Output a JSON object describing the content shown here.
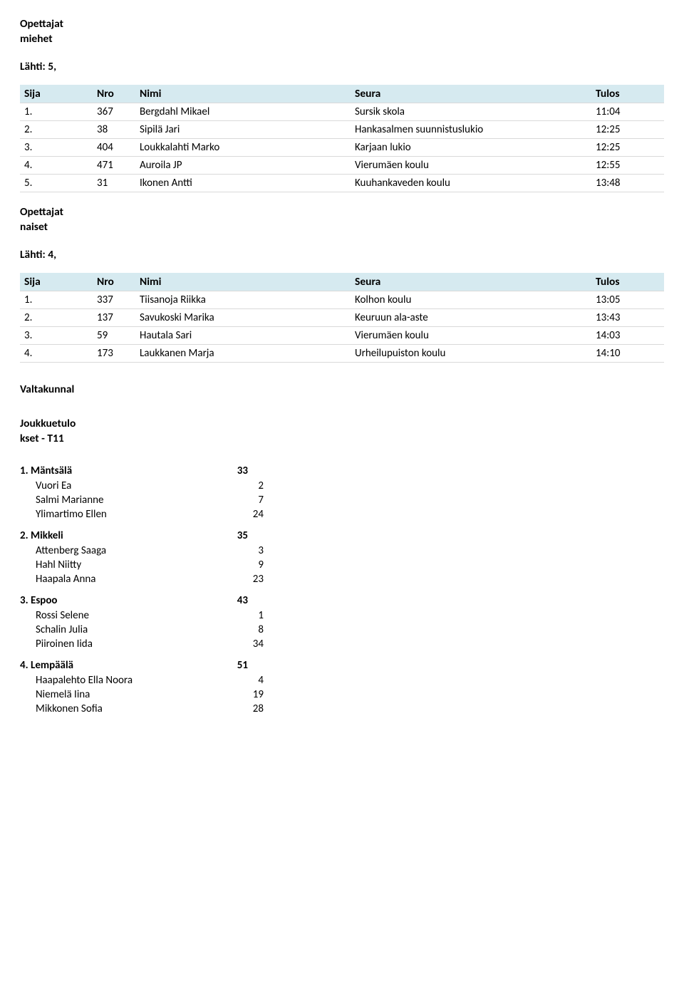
{
  "columns": {
    "sija": "Sija",
    "nro": "Nro",
    "nimi": "Nimi",
    "seura": "Seura",
    "tulos": "Tulos"
  },
  "section_header_bg": "#d6eaf0",
  "section_border": "#d9d9d9",
  "sections": [
    {
      "title_lines": [
        "Opettajat",
        "miehet"
      ],
      "start_label": "Lähti: 5,",
      "rows": [
        {
          "sija": "1.",
          "nro": "367",
          "nimi": "Bergdahl Mikael",
          "seura": "Sursik skola",
          "tulos": "11:04"
        },
        {
          "sija": "2.",
          "nro": "38",
          "nimi": "Sipilä Jari",
          "seura": "Hankasalmen suunnistuslukio",
          "tulos": "12:25"
        },
        {
          "sija": "3.",
          "nro": "404",
          "nimi": "Loukkalahti Marko",
          "seura": "Karjaan lukio",
          "tulos": "12:25"
        },
        {
          "sija": "4.",
          "nro": "471",
          "nimi": "Auroila JP",
          "seura": "Vierumäen koulu",
          "tulos": "12:55"
        },
        {
          "sija": "5.",
          "nro": "31",
          "nimi": "Ikonen Antti",
          "seura": "Kuuhankaveden koulu",
          "tulos": "13:48"
        }
      ]
    },
    {
      "title_lines": [
        "Opettajat",
        "naiset"
      ],
      "start_label": "Lähti: 4,",
      "rows": [
        {
          "sija": "1.",
          "nro": "337",
          "nimi": "Tiisanoja Riikka",
          "seura": "Kolhon koulu",
          "tulos": "13:05"
        },
        {
          "sija": "2.",
          "nro": "137",
          "nimi": "Savukoski Marika",
          "seura": "Keuruun ala-aste",
          "tulos": "13:43"
        },
        {
          "sija": "3.",
          "nro": "59",
          "nimi": "Hautala Sari",
          "seura": "Vierumäen koulu",
          "tulos": "14:03"
        },
        {
          "sija": "4.",
          "nro": "173",
          "nimi": "Laukkanen Marja",
          "seura": "Urheilupuiston koulu",
          "tulos": "14:10"
        }
      ]
    }
  ],
  "teams_title": "Valtakunnal",
  "teams_subtitle_lines": [
    "Joukkuetulo",
    "kset - T11"
  ],
  "teams": [
    {
      "header_label": "1. Mäntsälä",
      "header_value": "33",
      "members": [
        {
          "label": "Vuori Ea",
          "value": "2"
        },
        {
          "label": "Salmi Marianne",
          "value": "7"
        },
        {
          "label": "Ylimartimo Ellen",
          "value": "24"
        }
      ]
    },
    {
      "header_label": "2. Mikkeli",
      "header_value": "35",
      "members": [
        {
          "label": "Attenberg Saaga",
          "value": "3"
        },
        {
          "label": "Hahl Niitty",
          "value": "9"
        },
        {
          "label": "Haapala Anna",
          "value": "23"
        }
      ]
    },
    {
      "header_label": "3. Espoo",
      "header_value": "43",
      "members": [
        {
          "label": "Rossi Selene",
          "value": "1"
        },
        {
          "label": "Schalin Julia",
          "value": "8"
        },
        {
          "label": "Piiroinen Iida",
          "value": "34"
        }
      ]
    },
    {
      "header_label": "4. Lempäälä",
      "header_value": "51",
      "members": [
        {
          "label": "Haapalehto Ella Noora",
          "value": "4"
        },
        {
          "label": "Niemelä Iina",
          "value": "19"
        },
        {
          "label": "Mikkonen Sofia",
          "value": "28"
        }
      ]
    }
  ]
}
